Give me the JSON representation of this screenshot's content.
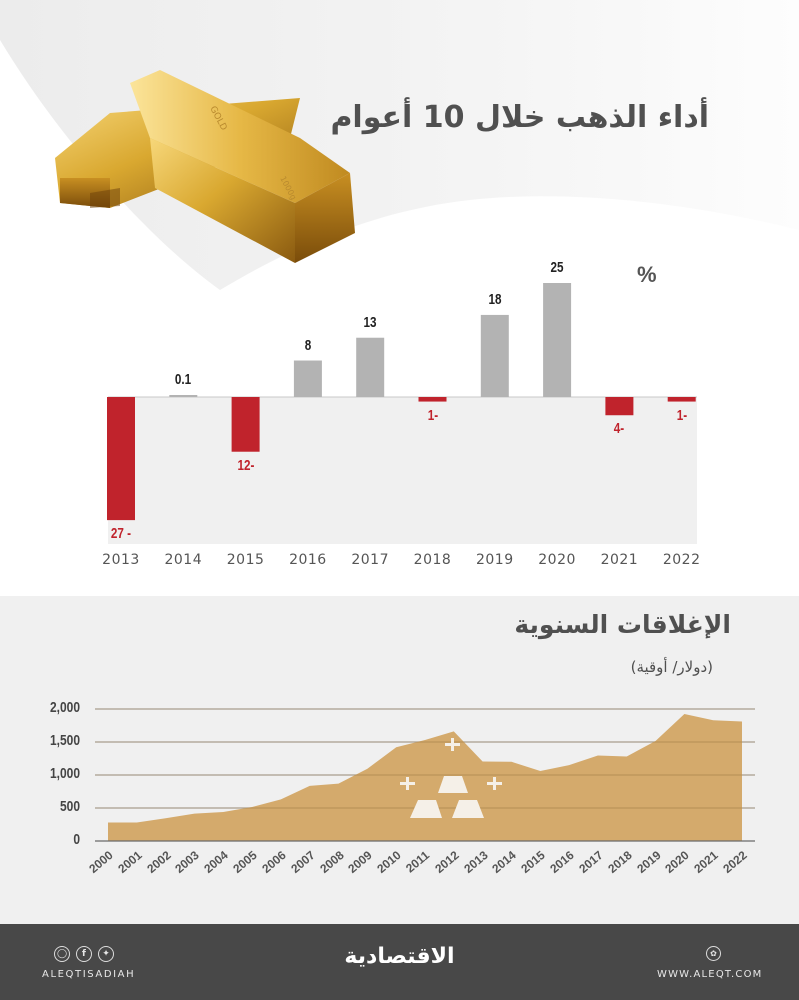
{
  "header": {
    "title": "أداء الذهب خلال 10 أعوام",
    "image": "gold-bars-image"
  },
  "colors": {
    "positive_bar": "#b3b3b3",
    "negative_bar": "#c0232c",
    "negative_label": "#c0232c",
    "area_fill": "#d4aa6c",
    "panel_bg": "#f0f0f0",
    "footer_bg": "#484848",
    "title_text": "#505050"
  },
  "chart_data": [
    {
      "type": "bar",
      "title": "أداء الذهب خلال 10 أعوام",
      "unit_label": "%",
      "categories": [
        "2013",
        "2014",
        "2015",
        "2016",
        "2017",
        "2018",
        "2019",
        "2020",
        "2021",
        "2022"
      ],
      "values": [
        -27,
        0.1,
        -12,
        8,
        13,
        -1,
        18,
        25,
        -4,
        -1
      ],
      "value_labels": [
        "27 -",
        "0.1",
        "12-",
        "8",
        "13",
        "1-",
        "18",
        "25",
        "4-",
        "1-"
      ],
      "xlabel": "",
      "ylabel": "%",
      "ylim": [
        -30,
        27
      ],
      "grid": false,
      "legend": null
    },
    {
      "type": "area",
      "title": "الإغلاقات السنوية",
      "subtitle": "(دولار/ أوقية)",
      "x": [
        "2000",
        "2001",
        "2002",
        "2003",
        "2004",
        "2005",
        "2006",
        "2007",
        "2008",
        "2009",
        "2010",
        "2011",
        "2012",
        "2013",
        "2014",
        "2015",
        "2016",
        "2017",
        "2018",
        "2019",
        "2020",
        "2021",
        "2022"
      ],
      "values": [
        280,
        280,
        345,
        415,
        440,
        515,
        630,
        835,
        870,
        1095,
        1420,
        1530,
        1660,
        1205,
        1200,
        1060,
        1150,
        1295,
        1280,
        1515,
        1925,
        1830,
        1810
      ],
      "yticks": [
        "2,000",
        "1,500",
        "1,000",
        "500",
        "0"
      ],
      "ylim": [
        0,
        2000
      ],
      "xlabel": "",
      "ylabel": "دولار/ أوقية",
      "grid": true,
      "legend": null
    }
  ],
  "bar_chart": {
    "unit": "%",
    "bars": [
      {
        "year": "2013",
        "value": -27,
        "label": "27 -"
      },
      {
        "year": "2014",
        "value": 0.1,
        "label": "0.1"
      },
      {
        "year": "2015",
        "value": -12,
        "label": "12-"
      },
      {
        "year": "2016",
        "value": 8,
        "label": "8"
      },
      {
        "year": "2017",
        "value": 13,
        "label": "13"
      },
      {
        "year": "2018",
        "value": -1,
        "label": "1-"
      },
      {
        "year": "2019",
        "value": 18,
        "label": "18"
      },
      {
        "year": "2020",
        "value": 25,
        "label": "25"
      },
      {
        "year": "2021",
        "value": -4,
        "label": "4-"
      },
      {
        "year": "2022",
        "value": -1,
        "label": "1-"
      }
    ]
  },
  "area_chart": {
    "title": "الإغلاقات السنوية",
    "unit": "(دولار/ أوقية)",
    "yticks": [
      "2,000",
      "1,500",
      "1,000",
      "500",
      "0"
    ],
    "icon": "gold-bars-icon"
  },
  "footer": {
    "social_icons": [
      "instagram-icon",
      "facebook-icon",
      "twitter-icon"
    ],
    "handle": "ALEQTISADIAH",
    "brand": "الاقتصادية",
    "website_icon": "web-icon",
    "website": "WWW.ALEQT.COM"
  }
}
